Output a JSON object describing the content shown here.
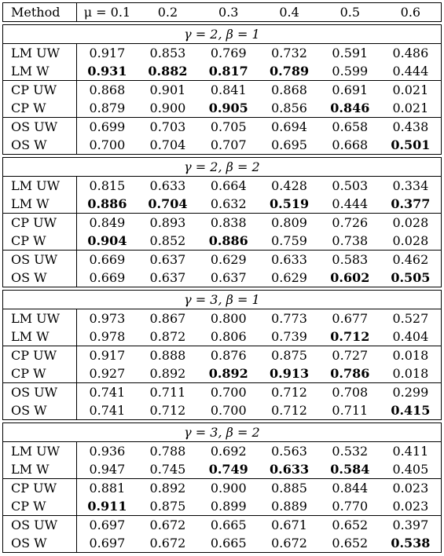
{
  "header": [
    "Method",
    "μ = 0.1",
    "0.2",
    "0.3",
    "0.4",
    "0.5",
    "0.6"
  ],
  "blocks": [
    {
      "title": "γ = 2, β = 1",
      "groups": [
        [
          {
            "method": "LM UW",
            "values": [
              "0.917",
              "0.853",
              "0.769",
              "0.732",
              "0.591",
              "0.486"
            ],
            "bold": [
              false,
              false,
              false,
              false,
              false,
              false
            ]
          },
          {
            "method": "LM W",
            "values": [
              "0.931",
              "0.882",
              "0.817",
              "0.789",
              "0.599",
              "0.444"
            ],
            "bold": [
              true,
              true,
              true,
              true,
              false,
              false
            ]
          }
        ],
        [
          {
            "method": "CP UW",
            "values": [
              "0.868",
              "0.901",
              "0.841",
              "0.868",
              "0.691",
              "0.021"
            ],
            "bold": [
              false,
              false,
              false,
              false,
              false,
              false
            ]
          },
          {
            "method": "CP W",
            "values": [
              "0.879",
              "0.900",
              "0.905",
              "0.856",
              "0.846",
              "0.021"
            ],
            "bold": [
              false,
              false,
              true,
              false,
              true,
              false
            ]
          }
        ],
        [
          {
            "method": "OS UW",
            "values": [
              "0.699",
              "0.703",
              "0.705",
              "0.694",
              "0.658",
              "0.438"
            ],
            "bold": [
              false,
              false,
              false,
              false,
              false,
              false
            ]
          },
          {
            "method": "OS W",
            "values": [
              "0.700",
              "0.704",
              "0.707",
              "0.695",
              "0.668",
              "0.501"
            ],
            "bold": [
              false,
              false,
              false,
              false,
              false,
              true
            ]
          }
        ]
      ]
    },
    {
      "title": "γ = 2, β = 2",
      "groups": [
        [
          {
            "method": "LM UW",
            "values": [
              "0.815",
              "0.633",
              "0.664",
              "0.428",
              "0.503",
              "0.334"
            ],
            "bold": [
              false,
              false,
              false,
              false,
              false,
              false
            ]
          },
          {
            "method": "LM W",
            "values": [
              "0.886",
              "0.704",
              "0.632",
              "0.519",
              "0.444",
              "0.377"
            ],
            "bold": [
              true,
              true,
              false,
              true,
              false,
              true
            ]
          }
        ],
        [
          {
            "method": "CP UW",
            "values": [
              "0.849",
              "0.893",
              "0.838",
              "0.809",
              "0.726",
              "0.028"
            ],
            "bold": [
              false,
              false,
              false,
              false,
              false,
              false
            ]
          },
          {
            "method": "CP W",
            "values": [
              "0.904",
              "0.852",
              "0.886",
              "0.759",
              "0.738",
              "0.028"
            ],
            "bold": [
              true,
              false,
              true,
              false,
              false,
              false
            ]
          }
        ],
        [
          {
            "method": "OS UW",
            "values": [
              "0.669",
              "0.637",
              "0.629",
              "0.633",
              "0.583",
              "0.462"
            ],
            "bold": [
              false,
              false,
              false,
              false,
              false,
              false
            ]
          },
          {
            "method": "OS W",
            "values": [
              "0.669",
              "0.637",
              "0.637",
              "0.629",
              "0.602",
              "0.505"
            ],
            "bold": [
              false,
              false,
              false,
              false,
              true,
              true
            ]
          }
        ]
      ]
    },
    {
      "title": "γ = 3, β = 1",
      "groups": [
        [
          {
            "method": "LM UW",
            "values": [
              "0.973",
              "0.867",
              "0.800",
              "0.773",
              "0.677",
              "0.527"
            ],
            "bold": [
              false,
              false,
              false,
              false,
              false,
              false
            ]
          },
          {
            "method": "LM W",
            "values": [
              "0.978",
              "0.872",
              "0.806",
              "0.739",
              "0.712",
              "0.404"
            ],
            "bold": [
              false,
              false,
              false,
              false,
              true,
              false
            ]
          }
        ],
        [
          {
            "method": "CP UW",
            "values": [
              "0.917",
              "0.888",
              "0.876",
              "0.875",
              "0.727",
              "0.018"
            ],
            "bold": [
              false,
              false,
              false,
              false,
              false,
              false
            ]
          },
          {
            "method": "CP W",
            "values": [
              "0.927",
              "0.892",
              "0.892",
              "0.913",
              "0.786",
              "0.018"
            ],
            "bold": [
              false,
              false,
              true,
              true,
              true,
              false
            ]
          }
        ],
        [
          {
            "method": "OS UW",
            "values": [
              "0.741",
              "0.711",
              "0.700",
              "0.712",
              "0.708",
              "0.299"
            ],
            "bold": [
              false,
              false,
              false,
              false,
              false,
              false
            ]
          },
          {
            "method": "OS W",
            "values": [
              "0.741",
              "0.712",
              "0.700",
              "0.712",
              "0.711",
              "0.415"
            ],
            "bold": [
              false,
              false,
              false,
              false,
              false,
              true
            ]
          }
        ]
      ]
    },
    {
      "title": "γ = 3, β = 2",
      "groups": [
        [
          {
            "method": "LM UW",
            "values": [
              "0.936",
              "0.788",
              "0.692",
              "0.563",
              "0.532",
              "0.411"
            ],
            "bold": [
              false,
              false,
              false,
              false,
              false,
              false
            ]
          },
          {
            "method": "LM W",
            "values": [
              "0.947",
              "0.745",
              "0.749",
              "0.633",
              "0.584",
              "0.405"
            ],
            "bold": [
              false,
              false,
              true,
              true,
              true,
              false
            ]
          }
        ],
        [
          {
            "method": "CP UW",
            "values": [
              "0.881",
              "0.892",
              "0.900",
              "0.885",
              "0.844",
              "0.023"
            ],
            "bold": [
              false,
              false,
              false,
              false,
              false,
              false
            ]
          },
          {
            "method": "CP W",
            "values": [
              "0.911",
              "0.875",
              "0.899",
              "0.889",
              "0.770",
              "0.023"
            ],
            "bold": [
              true,
              false,
              false,
              false,
              false,
              false
            ]
          }
        ],
        [
          {
            "method": "OS UW",
            "values": [
              "0.697",
              "0.672",
              "0.665",
              "0.671",
              "0.652",
              "0.397"
            ],
            "bold": [
              false,
              false,
              false,
              false,
              false,
              false
            ]
          },
          {
            "method": "OS W",
            "values": [
              "0.697",
              "0.672",
              "0.665",
              "0.672",
              "0.652",
              "0.538"
            ],
            "bold": [
              false,
              false,
              false,
              false,
              false,
              true
            ]
          }
        ]
      ]
    }
  ]
}
